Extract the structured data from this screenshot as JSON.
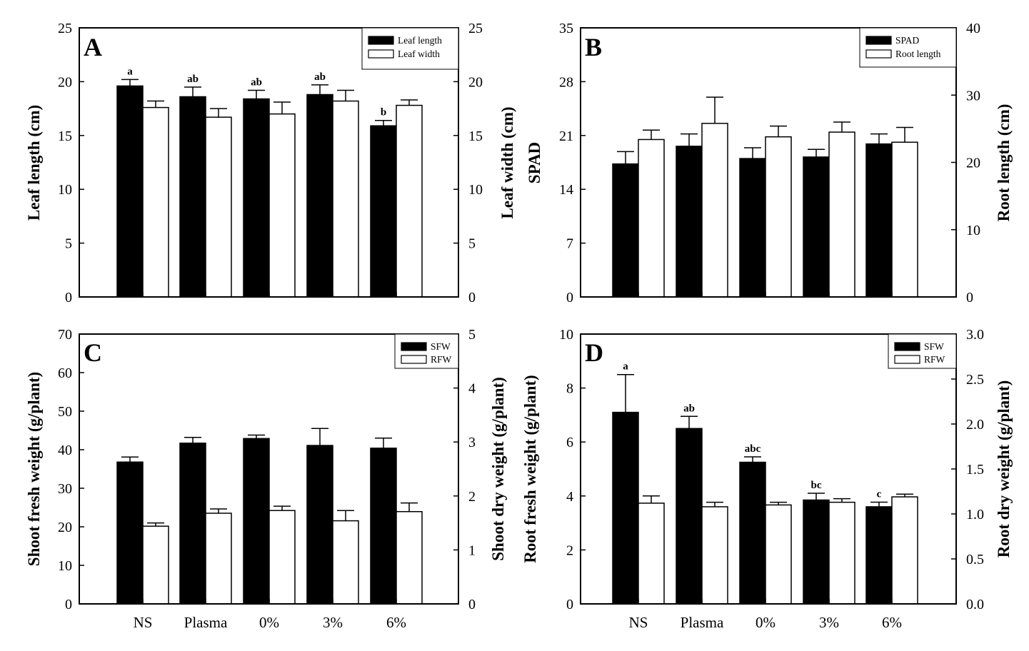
{
  "chart_data": [
    {
      "panel": "A",
      "type": "bar",
      "categories": [
        "NS",
        "Plasma",
        "0%",
        "3%",
        "6%"
      ],
      "ylabel_left": "Leaf length (cm)",
      "ylabel_right": "Leaf width (cm)",
      "ylim_left": [
        0,
        25
      ],
      "ylim_right": [
        0,
        25
      ],
      "yticks_left": [
        0,
        5,
        10,
        15,
        20,
        25
      ],
      "yticks_right": [
        0,
        5,
        10,
        15,
        20,
        25
      ],
      "legend": [
        "Leaf length",
        "Leaf width"
      ],
      "legend_position": "top-right",
      "series": [
        {
          "name": "Leaf length",
          "axis": "left",
          "fill": "#000000",
          "values": [
            19.6,
            18.6,
            18.4,
            18.8,
            15.9
          ],
          "errors": [
            0.6,
            0.9,
            0.8,
            0.9,
            0.5
          ],
          "letters": [
            "a",
            "ab",
            "ab",
            "ab",
            "b"
          ]
        },
        {
          "name": "Leaf width",
          "axis": "right",
          "fill": "#ffffff",
          "values": [
            17.6,
            16.7,
            17.0,
            18.2,
            17.8
          ],
          "errors": [
            0.6,
            0.8,
            1.1,
            1.0,
            0.5
          ],
          "letters": [
            "",
            "",
            "",
            "",
            ""
          ]
        }
      ]
    },
    {
      "panel": "B",
      "type": "bar",
      "categories": [
        "NS",
        "Plasma",
        "0%",
        "3%",
        "6%"
      ],
      "ylabel_left": "SPAD",
      "ylabel_right": "Root length (cm)",
      "ylim_left": [
        0,
        35
      ],
      "ylim_right": [
        0,
        40
      ],
      "yticks_left": [
        0,
        7,
        14,
        21,
        28,
        35
      ],
      "yticks_right": [
        0,
        10,
        20,
        30,
        40
      ],
      "legend": [
        "SPAD",
        "Root length"
      ],
      "legend_position": "top-right",
      "series": [
        {
          "name": "SPAD",
          "axis": "left",
          "fill": "#000000",
          "values": [
            17.3,
            19.6,
            18.0,
            18.2,
            19.9
          ],
          "errors": [
            1.6,
            1.6,
            1.4,
            1.0,
            1.3
          ],
          "letters": [
            "",
            "",
            "",
            "",
            ""
          ]
        },
        {
          "name": "Root length",
          "axis": "right",
          "fill": "#ffffff",
          "values": [
            23.4,
            25.8,
            23.8,
            24.5,
            23.0
          ],
          "errors": [
            1.4,
            3.9,
            1.6,
            1.5,
            2.2
          ],
          "letters": [
            "",
            "",
            "",
            "",
            ""
          ]
        }
      ]
    },
    {
      "panel": "C",
      "type": "bar",
      "categories": [
        "NS",
        "Plasma",
        "0%",
        "3%",
        "6%"
      ],
      "ylabel_left": "Shoot fresh weight (g/plant)",
      "ylabel_right": "Shoot dry weight (g/plant)",
      "ylim_left": [
        0,
        70
      ],
      "ylim_right": [
        0,
        5
      ],
      "yticks_left": [
        0,
        10,
        20,
        30,
        40,
        50,
        60,
        70
      ],
      "yticks_right": [
        0,
        1,
        2,
        3,
        4,
        5
      ],
      "legend": [
        "SFW",
        "RFW"
      ],
      "legend_position": "top-right",
      "series": [
        {
          "name": "SFW",
          "axis": "left",
          "fill": "#000000",
          "values": [
            36.8,
            41.7,
            42.9,
            41.1,
            40.4
          ],
          "errors": [
            1.3,
            1.5,
            0.9,
            4.4,
            2.6
          ],
          "letters": [
            "",
            "",
            "",
            "",
            ""
          ]
        },
        {
          "name": "RFW",
          "axis": "right",
          "fill": "#ffffff",
          "values": [
            1.44,
            1.68,
            1.73,
            1.54,
            1.71
          ],
          "errors": [
            0.06,
            0.08,
            0.08,
            0.19,
            0.16
          ],
          "letters": [
            "",
            "",
            "",
            "",
            ""
          ]
        }
      ]
    },
    {
      "panel": "D",
      "type": "bar",
      "categories": [
        "NS",
        "Plasma",
        "0%",
        "3%",
        "6%"
      ],
      "ylabel_left": "Root fresh weight (g/plant)",
      "ylabel_right": "Root dry weight (g/plant)",
      "ylim_left": [
        0,
        10
      ],
      "ylim_right": [
        0,
        3.0
      ],
      "yticks_left": [
        0,
        2,
        4,
        6,
        8,
        10
      ],
      "yticks_right": [
        "0.0",
        "0.5",
        "1.0",
        "1.5",
        "2.0",
        "2.5",
        "3.0"
      ],
      "legend": [
        "SFW",
        "RFW"
      ],
      "legend_position": "top-right",
      "series": [
        {
          "name": "SFW",
          "axis": "left",
          "fill": "#000000",
          "values": [
            7.1,
            6.5,
            5.25,
            3.85,
            3.6
          ],
          "errors": [
            1.4,
            0.45,
            0.2,
            0.25,
            0.17
          ],
          "letters": [
            "a",
            "ab",
            "abc",
            "bc",
            "c"
          ]
        },
        {
          "name": "RFW",
          "axis": "right",
          "fill": "#ffffff",
          "values": [
            1.12,
            1.08,
            1.1,
            1.13,
            1.19
          ],
          "errors": [
            0.08,
            0.05,
            0.03,
            0.04,
            0.03
          ],
          "letters": [
            "",
            "",
            "",
            "",
            ""
          ]
        }
      ]
    }
  ]
}
